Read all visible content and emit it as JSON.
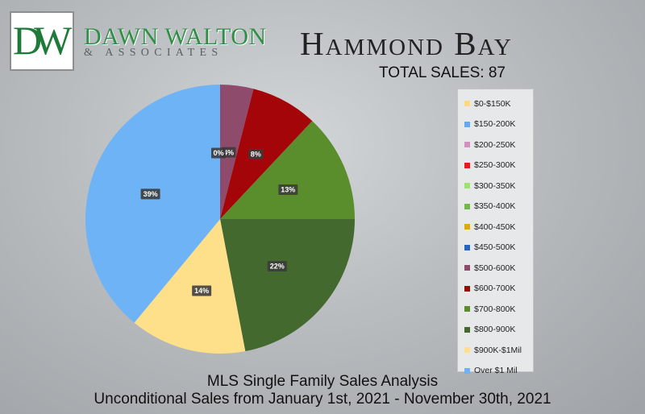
{
  "brand": {
    "monogram": "DW",
    "name": "DAWN WALTON",
    "subtitle": "& ASSOCIATES"
  },
  "header": {
    "title": "Hammond Bay",
    "total_sales": "TOTAL SALES: 87"
  },
  "footer": {
    "line1": "MLS Single Family Sales Analysis",
    "line2": "Unconditional Sales from January 1st, 2021 - November 30th, 2021"
  },
  "chart_data": {
    "type": "pie",
    "title": "",
    "legend_position": "right",
    "slices": [
      {
        "label": "$0-$150K",
        "value": 0,
        "color": "#ffd97d"
      },
      {
        "label": "$150-200K",
        "value": 0,
        "color": "#64a9f5"
      },
      {
        "label": "$200-250K",
        "value": 0,
        "color": "#d291c0"
      },
      {
        "label": "$250-300K",
        "value": 0,
        "color": "#e51b1b"
      },
      {
        "label": "$300-350K",
        "value": 0,
        "color": "#9ce36c"
      },
      {
        "label": "$350-400K",
        "value": 0,
        "color": "#6fbb45"
      },
      {
        "label": "$400-450K",
        "value": 0,
        "color": "#e0a712"
      },
      {
        "label": "$450-500K",
        "value": 0,
        "color": "#2566bf"
      },
      {
        "label": "$500-600K",
        "value": 4,
        "display": "4%",
        "color": "#8f4b6b"
      },
      {
        "label": "$600-700K",
        "value": 8,
        "display": "8%",
        "color": "#a30509"
      },
      {
        "label": "$700-800K",
        "value": 13,
        "display": "13%",
        "color": "#5a8d2b"
      },
      {
        "label": "$800-900K",
        "value": 22,
        "display": "22%",
        "color": "#43692e"
      },
      {
        "label": "$900K-$1Mil",
        "value": 14,
        "display": "14%",
        "color": "#ffe08a"
      },
      {
        "label": "Over $1 Mil",
        "value": 39,
        "display": "39%",
        "color": "#6fb3f7"
      }
    ],
    "zero_label": "0%"
  }
}
